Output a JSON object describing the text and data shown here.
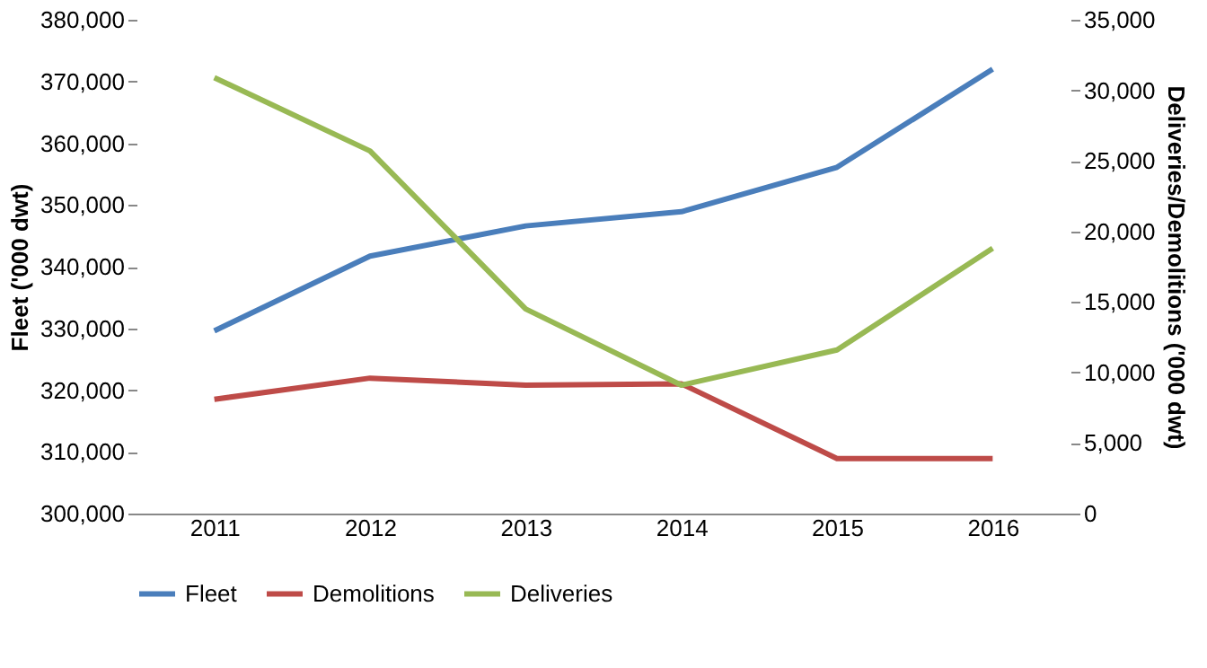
{
  "chart_data": {
    "type": "line",
    "categories": [
      "2011",
      "2012",
      "2013",
      "2014",
      "2015",
      "2016"
    ],
    "ylabel": "Fleet ('000 dwt)",
    "y2label": "Deliveries/Demolitions ('000 dwt)",
    "ylim": [
      300000,
      380000
    ],
    "yticks": [
      {
        "value": 300000,
        "label": "300,000"
      },
      {
        "value": 310000,
        "label": "310,000"
      },
      {
        "value": 320000,
        "label": "320,000"
      },
      {
        "value": 330000,
        "label": "330,000"
      },
      {
        "value": 340000,
        "label": "340,000"
      },
      {
        "value": 350000,
        "label": "350,000"
      },
      {
        "value": 360000,
        "label": "360,000"
      },
      {
        "value": 370000,
        "label": "370,000"
      },
      {
        "value": 380000,
        "label": "380,000"
      }
    ],
    "y2lim": [
      0,
      35000
    ],
    "y2ticks": [
      0,
      {
        "value": 5000,
        "label": "5,000"
      },
      {
        "value": 10000,
        "label": "10,000"
      },
      {
        "value": 15000,
        "label": "15,000"
      },
      {
        "value": 20000,
        "label": "20,000"
      },
      {
        "value": 25000,
        "label": "25,000"
      },
      {
        "value": 30000,
        "label": "30,000"
      },
      {
        "value": 35000,
        "label": "35,000"
      }
    ],
    "series": [
      {
        "name": "Fleet",
        "color": "#4a7ebb",
        "values": [
          329600,
          341700,
          346600,
          348900,
          356100,
          372000
        ]
      },
      {
        "name": "Demolitions",
        "color": "#be4b48",
        "axis": "y2",
        "values": [
          8100,
          9600,
          9100,
          9200,
          3900,
          3900
        ]
      },
      {
        "name": "Deliveries",
        "color": "#98b954",
        "axis": "y2",
        "values": [
          30900,
          25700,
          14500,
          9100,
          11600,
          18800
        ]
      }
    ],
    "grid": false,
    "legend": "bottom",
    "marker": "none",
    "line_style": "solid"
  }
}
